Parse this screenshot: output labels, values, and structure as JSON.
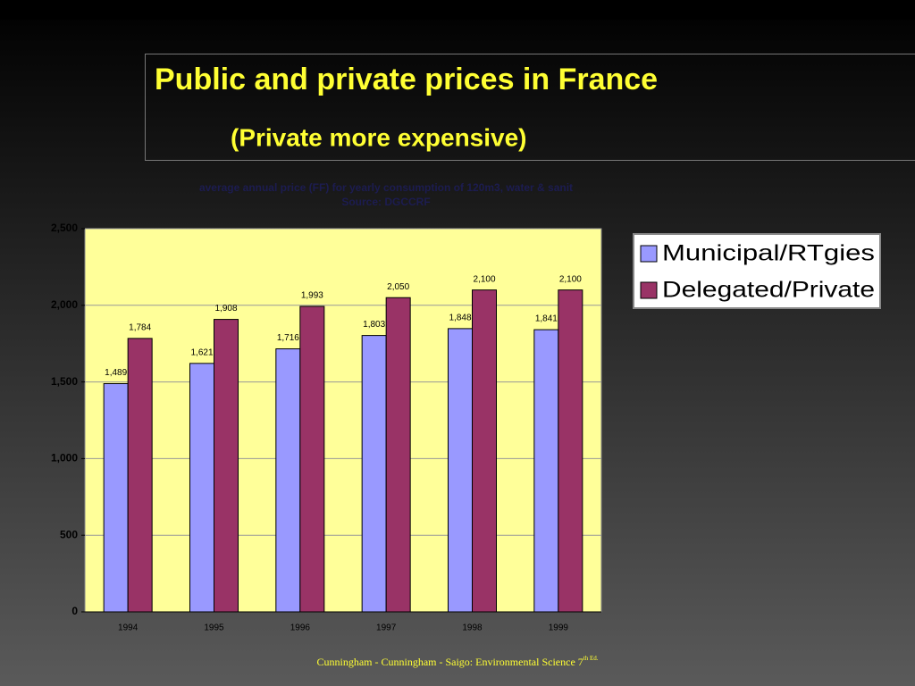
{
  "slide": {
    "title": "Public and private prices in France",
    "subtitle": "(Private more expensive)",
    "footer": "Cunningham - Cunningham - Saigo: Environmental Science 7",
    "footer_sup": "th Ed."
  },
  "chart_data": {
    "type": "bar",
    "title": "average annual price (FF) for yearly consumption of 120m3, water & sanit",
    "subtitle": "Source: DGCCRF",
    "categories": [
      "1994",
      "1995",
      "1996",
      "1997",
      "1998",
      "1999"
    ],
    "series": [
      {
        "name": "Municipal/RTgies",
        "color": "#9999ff",
        "values": [
          1489,
          1621,
          1716,
          1803,
          1848,
          1841
        ],
        "value_labels": [
          "1,489",
          "1,621",
          "1,716",
          "1,803",
          "1,848",
          "1,841"
        ]
      },
      {
        "name": "Delegated/Private",
        "color": "#993366",
        "values": [
          1784,
          1908,
          1993,
          2050,
          2100,
          2100
        ],
        "value_labels": [
          "1,784",
          "1,908",
          "1,993",
          "2,050",
          "2,100",
          "2,100"
        ]
      }
    ],
    "ylim": [
      0,
      2500
    ],
    "yticks": [
      0,
      500,
      {
        "value": 1000,
        "label": "1,000"
      },
      {
        "value": 1500,
        "label": "1,500"
      },
      {
        "value": 2000,
        "label": "2,000"
      },
      {
        "value": 2500,
        "label": "2,500"
      }
    ],
    "grid": true,
    "legend": "right",
    "plot_background": "#ffff99"
  }
}
